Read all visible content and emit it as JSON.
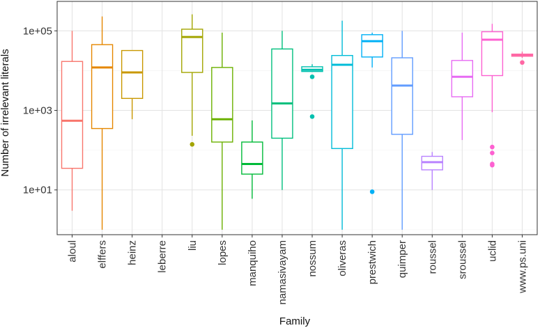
{
  "chart_data": {
    "type": "boxplot",
    "xlabel": "Family",
    "ylabel": "Number of irrelevant literals",
    "yscale": "log10",
    "ylim": [
      0.75,
      550000
    ],
    "y_ticks": [
      {
        "value": 10,
        "label": "1e+01"
      },
      {
        "value": 1000,
        "label": "1e+03"
      },
      {
        "value": 100000,
        "label": "1e+05"
      }
    ],
    "categories": [
      "aloul",
      "elffers",
      "heinz",
      "leberre",
      "liu",
      "lopes",
      "manquiho",
      "namasivayam",
      "nossum",
      "oliveras",
      "prestwich",
      "quimper",
      "roussel",
      "sroussel",
      "uclid",
      "www.ps.uni"
    ],
    "colors": [
      "#F8766D",
      "#E58700",
      "#C99800",
      "#A3A500",
      "#A3A500",
      "#6BB100",
      "#00BA38",
      "#00BF7D",
      "#00C0AF",
      "#00BCD8",
      "#00B0F6",
      "#619CFF",
      "#B983FF",
      "#E76BF3",
      "#FD61D1",
      "#FF67A4"
    ],
    "series": [
      {
        "name": "aloul",
        "min": 3,
        "q1": 35,
        "median": 550,
        "q3": 17000,
        "max": 100000,
        "outliers": []
      },
      {
        "name": "elffers",
        "min": 1,
        "q1": 350,
        "median": 12000,
        "q3": 45000,
        "max": 230000,
        "outliers": []
      },
      {
        "name": "heinz",
        "min": 600,
        "q1": 2000,
        "median": 9000,
        "q3": 32000,
        "max": 32000,
        "outliers": []
      },
      {
        "name": "leberre",
        "min": null,
        "q1": null,
        "median": null,
        "q3": null,
        "max": null,
        "outliers": []
      },
      {
        "name": "liu",
        "min": 230,
        "q1": 9000,
        "median": 70000,
        "q3": 110000,
        "max": 260000,
        "outliers": [
          140
        ]
      },
      {
        "name": "lopes",
        "min": 1,
        "q1": 160,
        "median": 600,
        "q3": 12000,
        "max": 90000,
        "outliers": []
      },
      {
        "name": "manquiho",
        "min": 6,
        "q1": 25,
        "median": 45,
        "q3": 160,
        "max": 560,
        "outliers": []
      },
      {
        "name": "namasivayam",
        "min": 10,
        "q1": 200,
        "median": 1500,
        "q3": 35000,
        "max": 100000,
        "outliers": []
      },
      {
        "name": "nossum",
        "min": 9500,
        "q1": 9500,
        "median": 10500,
        "q3": 12500,
        "max": 14500,
        "outliers": [
          7000,
          700
        ]
      },
      {
        "name": "oliveras",
        "min": 1,
        "q1": 110,
        "median": 14000,
        "q3": 24000,
        "max": 180000,
        "outliers": []
      },
      {
        "name": "prestwich",
        "min": 12000,
        "q1": 22000,
        "median": 55000,
        "q3": 80000,
        "max": 90000,
        "outliers": [
          9
        ]
      },
      {
        "name": "quimper",
        "min": 1,
        "q1": 250,
        "median": 4200,
        "q3": 21000,
        "max": 100000,
        "outliers": []
      },
      {
        "name": "roussel",
        "min": 10,
        "q1": 32,
        "median": 50,
        "q3": 70,
        "max": 90,
        "outliers": []
      },
      {
        "name": "sroussel",
        "min": 180,
        "q1": 2200,
        "median": 7000,
        "q3": 18000,
        "max": 90000,
        "outliers": []
      },
      {
        "name": "uclid",
        "min": 900,
        "q1": 7500,
        "median": 60000,
        "q3": 95000,
        "max": 150000,
        "outliers": [
          120,
          85,
          45,
          42
        ]
      },
      {
        "name": "www.ps.uni",
        "min": 21000,
        "q1": 23000,
        "median": 24000,
        "q3": 26000,
        "max": 30000,
        "outliers": [
          16000
        ]
      }
    ]
  }
}
